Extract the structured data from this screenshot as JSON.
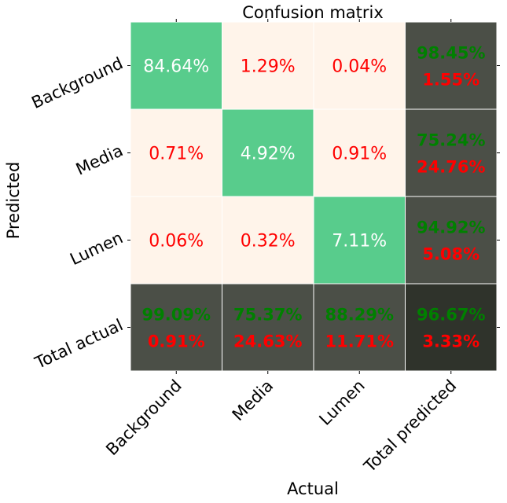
{
  "chart_data": {
    "type": "heatmap",
    "title": "Confusion matrix",
    "xlabel": "Actual",
    "ylabel": "Predicted",
    "x_categories": [
      "Background",
      "Media",
      "Lumen",
      "Total predicted"
    ],
    "y_categories": [
      "Background",
      "Media",
      "Lumen",
      "Total actual"
    ],
    "cells": [
      [
        {
          "lines": [
            "84.64%"
          ],
          "kind": "diag"
        },
        {
          "lines": [
            "1.29%"
          ],
          "kind": "off"
        },
        {
          "lines": [
            "0.04%"
          ],
          "kind": "off"
        },
        {
          "lines": [
            "98.45%",
            "1.55%"
          ],
          "kind": "total"
        }
      ],
      [
        {
          "lines": [
            "0.71%"
          ],
          "kind": "off"
        },
        {
          "lines": [
            "4.92%"
          ],
          "kind": "diag"
        },
        {
          "lines": [
            "0.91%"
          ],
          "kind": "off"
        },
        {
          "lines": [
            "75.24%",
            "24.76%"
          ],
          "kind": "total"
        }
      ],
      [
        {
          "lines": [
            "0.06%"
          ],
          "kind": "off"
        },
        {
          "lines": [
            "0.32%"
          ],
          "kind": "off"
        },
        {
          "lines": [
            "7.11%"
          ],
          "kind": "diag"
        },
        {
          "lines": [
            "94.92%",
            "5.08%"
          ],
          "kind": "total"
        }
      ],
      [
        {
          "lines": [
            "99.09%",
            "0.91%"
          ],
          "kind": "total"
        },
        {
          "lines": [
            "75.37%",
            "24.63%"
          ],
          "kind": "total"
        },
        {
          "lines": [
            "88.29%",
            "11.71%"
          ],
          "kind": "total"
        },
        {
          "lines": [
            "96.67%",
            "3.33%"
          ],
          "kind": "grand"
        }
      ]
    ],
    "colors": {
      "diag_fill": "#58cc8c",
      "off_fill": "#fff4ea",
      "total_fill": "#4b4f47",
      "grand_fill": "#2f332b",
      "diag_text": "#ffffff",
      "off_text": "#ff0000",
      "correct_text": "#008000",
      "error_text": "#ff0000",
      "grid_line": "#ffffff"
    },
    "grid": false,
    "legend": "none"
  }
}
